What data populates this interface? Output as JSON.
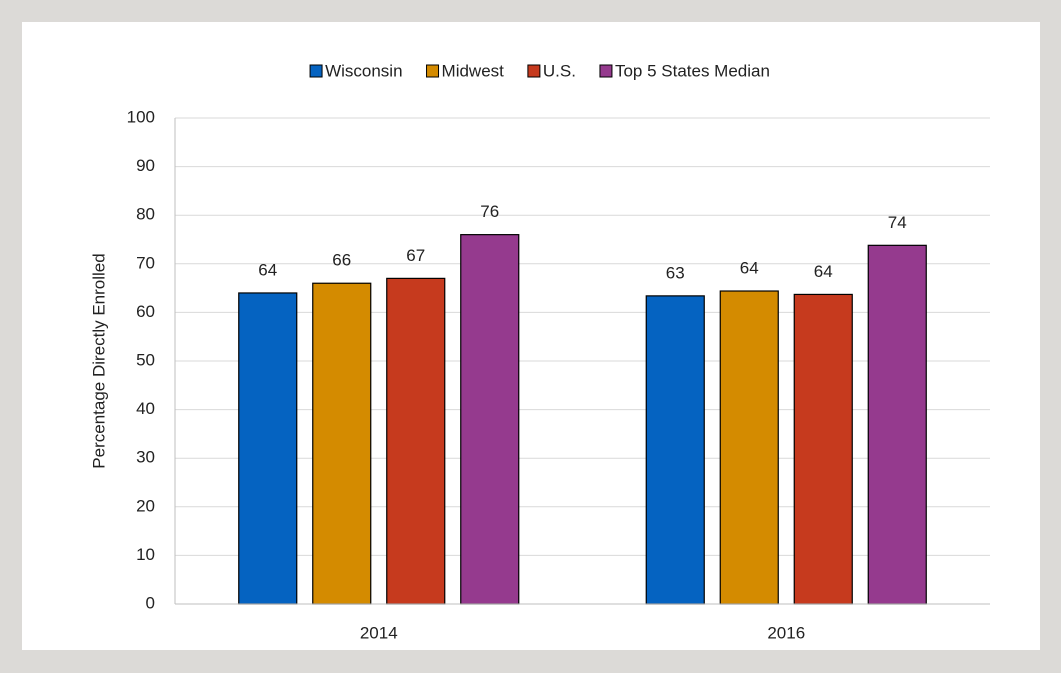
{
  "chart_data": {
    "type": "bar",
    "y_label": "Percentage Directly Enrolled",
    "categories": [
      "2014",
      "2016"
    ],
    "series": [
      {
        "name": "Wisconsin",
        "color": "#0563c1",
        "values": [
          64,
          63.4
        ],
        "value_labels": [
          "64",
          "63"
        ]
      },
      {
        "name": "Midwest",
        "color": "#d48b00",
        "values": [
          66,
          64.4
        ],
        "value_labels": [
          "66",
          "64"
        ]
      },
      {
        "name": "U.S.",
        "color": "#c63a1e",
        "values": [
          67,
          63.7
        ],
        "value_labels": [
          "67",
          "64"
        ]
      },
      {
        "name": "Top 5 States Median",
        "color": "#953a8e",
        "values": [
          76,
          73.8
        ],
        "value_labels": [
          "76",
          "74"
        ]
      }
    ],
    "ylim": [
      0,
      100
    ],
    "yticks": [
      0,
      10,
      20,
      30,
      40,
      50,
      60,
      70,
      80,
      90,
      100
    ],
    "grid": true,
    "legend": "top"
  }
}
